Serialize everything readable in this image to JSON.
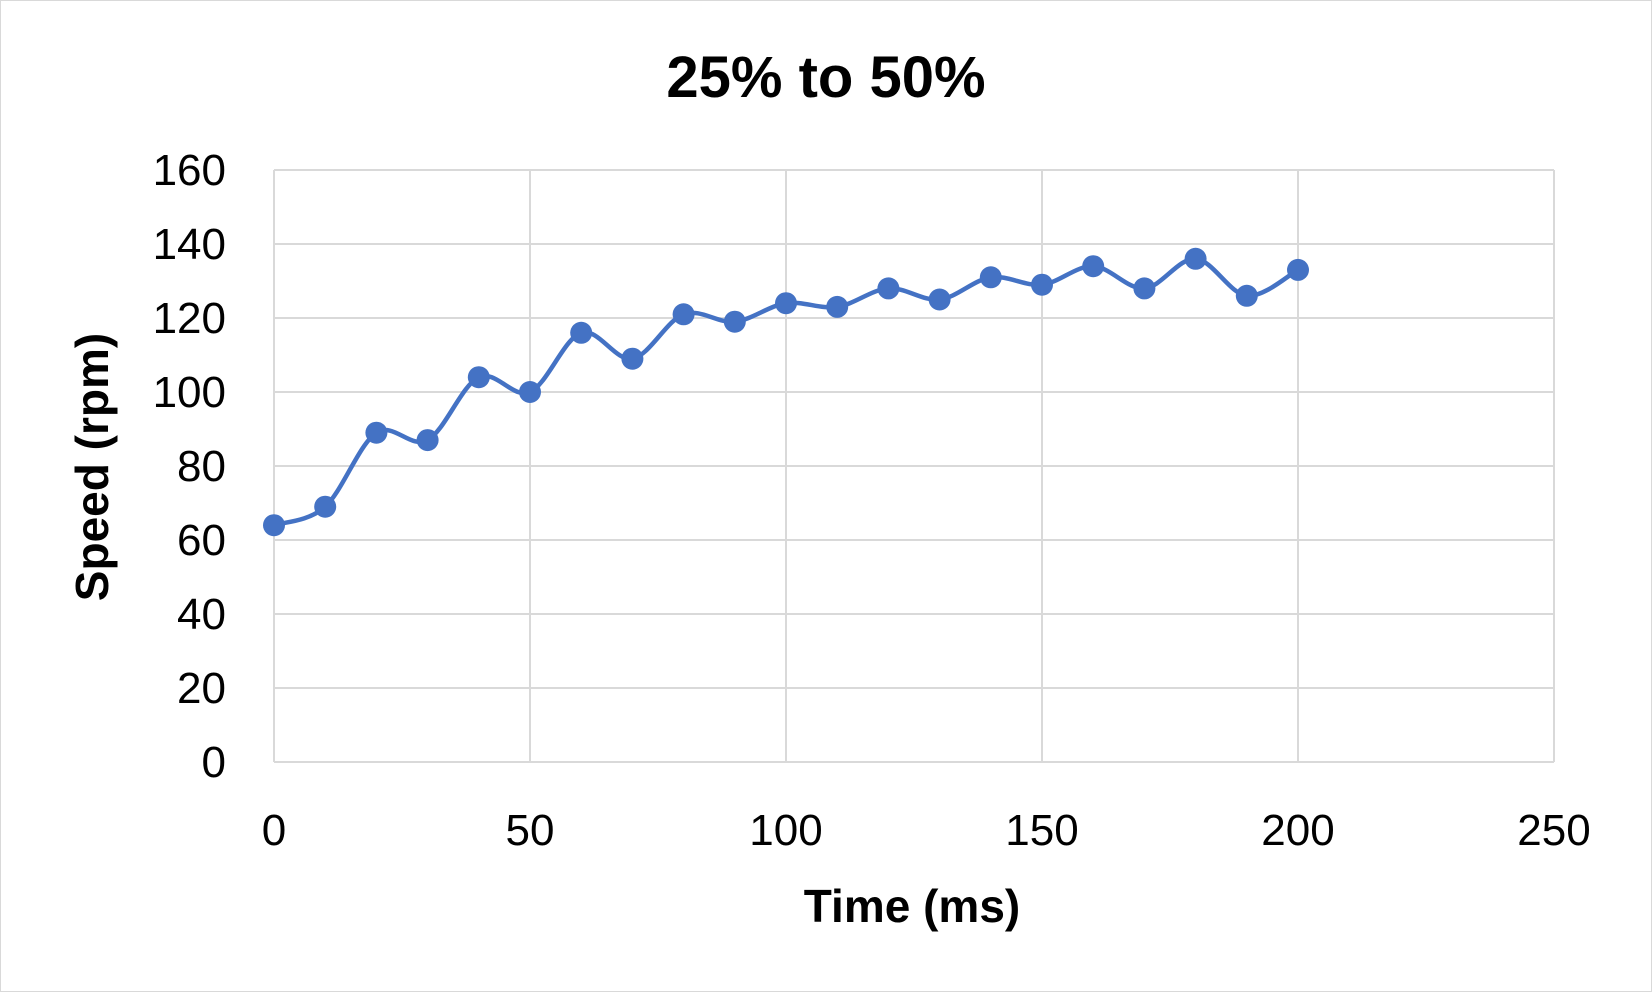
{
  "chart_data": {
    "type": "scatter",
    "title": "25% to 50%",
    "xlabel": "Time (ms)",
    "ylabel": "Speed (rpm)",
    "xlim": [
      0,
      250
    ],
    "ylim": [
      0,
      160
    ],
    "x_ticks": [
      "0",
      "50",
      "100",
      "150",
      "200",
      "250"
    ],
    "y_ticks": [
      "0",
      "20",
      "40",
      "60",
      "80",
      "100",
      "120",
      "140",
      "160"
    ],
    "grid": true,
    "smoothed_line": true,
    "color": "#4472C4",
    "series": [
      {
        "x": [
          0,
          10,
          20,
          30,
          40,
          50,
          60,
          70,
          80,
          90,
          100,
          110,
          120,
          130,
          140,
          150,
          160,
          170,
          180,
          190,
          200
        ],
        "y": [
          64,
          69,
          89,
          87,
          104,
          100,
          116,
          109,
          121,
          119,
          124,
          123,
          128,
          125,
          131,
          129,
          134,
          128,
          136,
          126,
          133
        ]
      }
    ]
  }
}
